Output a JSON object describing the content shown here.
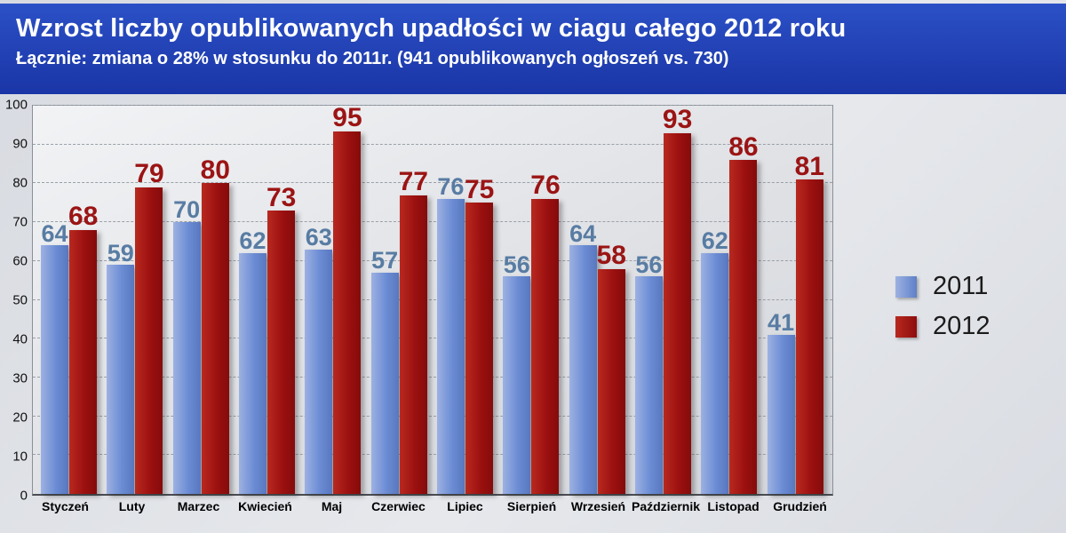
{
  "header": {
    "title": "Wzrost liczby opublikowanych upadłości w ciagu całego 2012 roku",
    "subtitle": "Łącznie: zmiana o 28% w stosunku do  2011r. (941 opublikowanych ogłoszeń vs. 730)"
  },
  "chart_data": {
    "type": "bar",
    "title": "Wzrost liczby opublikowanych upadłości w ciagu całego 2012 roku",
    "subtitle": "Łącznie: zmiana o 28% w stosunku do 2011r. (941 opublikowanych ogłoszeń vs. 730)",
    "categories": [
      "Styczeń",
      "Luty",
      "Marzec",
      "Kwiecień",
      "Maj",
      "Czerwiec",
      "Lipiec",
      "Sierpień",
      "Wrzesień",
      "Październik",
      "Listopad",
      "Grudzień"
    ],
    "series": [
      {
        "name": "2011",
        "color": "#6b8cd4",
        "label_color": "#587ca3",
        "values": [
          64,
          59,
          70,
          62,
          63,
          57,
          76,
          56,
          64,
          56,
          62,
          41
        ]
      },
      {
        "name": "2012",
        "color": "#9c1010",
        "label_color": "#9b1414",
        "values": [
          68,
          79,
          80,
          73,
          95,
          77,
          75,
          76,
          58,
          93,
          86,
          81
        ]
      }
    ],
    "xlabel": "",
    "ylabel": "",
    "ylim": [
      0,
      100
    ],
    "yticks": [
      0,
      10,
      20,
      30,
      40,
      50,
      60,
      70,
      80,
      90,
      100
    ],
    "grid": "horizontal-dashed",
    "legend_position": "right",
    "data_labels": true
  },
  "legend": {
    "items": [
      {
        "label": "2011",
        "color": "#6b8cd4"
      },
      {
        "label": "2012",
        "color": "#9c1010"
      }
    ]
  },
  "colors": {
    "header_bg": "#1f3cb0",
    "bar_2011": "#6b8cd4",
    "bar_2012": "#9c1010",
    "label_2011": "#587ca3",
    "label_2012": "#9b1414",
    "background": "#dadde2"
  }
}
